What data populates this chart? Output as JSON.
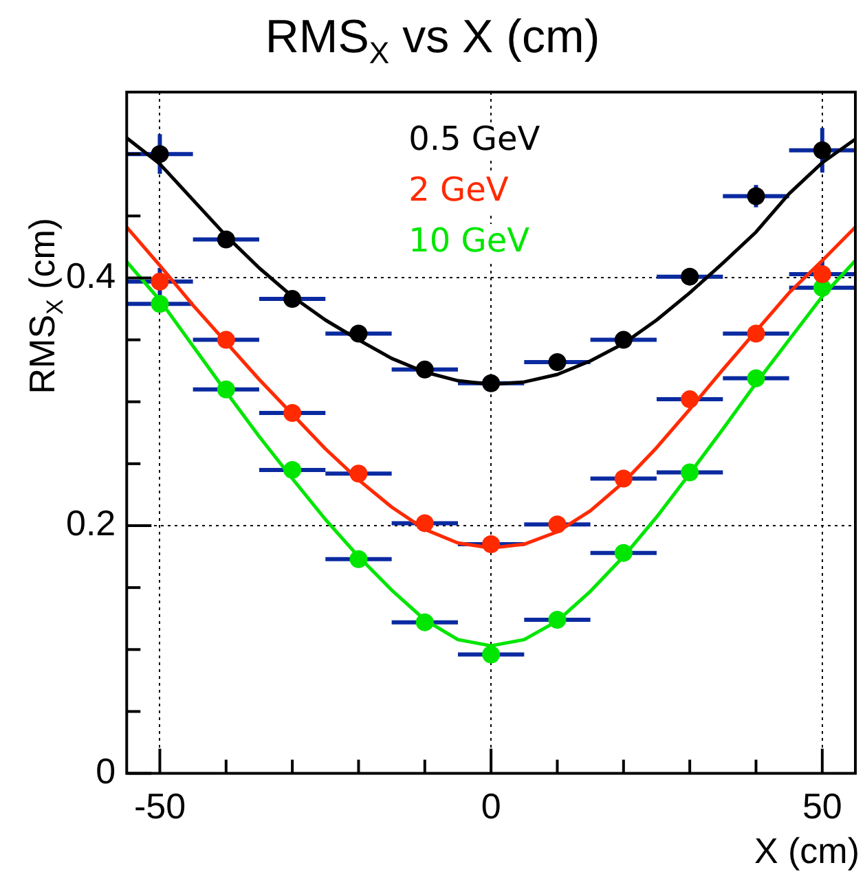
{
  "chart_data": {
    "type": "scatter",
    "title": "RMS$_{X}$ vs X (cm)",
    "xlabel": "X (cm)",
    "ylabel": "RMS$_{X}$ (cm)",
    "x": [
      -50,
      -40,
      -30,
      -20,
      -10,
      0,
      10,
      20,
      30,
      40,
      50
    ],
    "xlim": [
      -55,
      55
    ],
    "ylim": [
      0,
      0.55
    ],
    "xticks": [
      -50,
      {
        "value": -40,
        "label": null
      },
      {
        "value": -30,
        "label": null
      },
      {
        "value": -20,
        "label": null
      },
      {
        "value": -10,
        "label": null
      },
      0,
      {
        "value": 10,
        "label": null
      },
      {
        "value": 20,
        "label": null
      },
      {
        "value": 30,
        "label": null
      },
      {
        "value": 40,
        "label": null
      },
      50
    ],
    "yticks": [
      0,
      {
        "value": 0.05,
        "label": null
      },
      {
        "value": 0.1,
        "label": null
      },
      {
        "value": 0.15,
        "label": null
      },
      0.2,
      {
        "value": 0.25,
        "label": null
      },
      {
        "value": 0.3,
        "label": null
      },
      {
        "value": 0.35,
        "label": null
      },
      0.4,
      {
        "value": 0.45,
        "label": null
      },
      {
        "value": 0.5,
        "label": null
      }
    ],
    "grid": true,
    "legend": "top",
    "marker": "circle",
    "series": [
      {
        "name": "0.5 GeV",
        "color": "#000000",
        "values": [
          0.5,
          0.431,
          0.383,
          0.355,
          0.326,
          0.315,
          0.332,
          0.35,
          0.401,
          0.466,
          0.503
        ],
        "xerrors": [
          5,
          5,
          5,
          5,
          5,
          5,
          5,
          5,
          5,
          5,
          5
        ],
        "errors": [
          0.016,
          null,
          null,
          null,
          null,
          null,
          null,
          null,
          null,
          0.009,
          0.018
        ]
      },
      {
        "name": "2 GeV",
        "color": "#ff2a00",
        "values": [
          0.397,
          0.35,
          0.291,
          0.242,
          0.202,
          0.185,
          0.201,
          0.238,
          0.302,
          0.355,
          0.403
        ],
        "xerrors": [
          5,
          5,
          5,
          5,
          5,
          5,
          5,
          5,
          5,
          5,
          5
        ],
        "errors": [
          0.011,
          null,
          null,
          null,
          null,
          null,
          null,
          null,
          null,
          null,
          0.011
        ]
      },
      {
        "name": "10 GeV",
        "color": "#00e600",
        "values": [
          0.379,
          0.31,
          0.245,
          0.173,
          0.122,
          0.096,
          0.124,
          0.178,
          0.243,
          0.319,
          0.392
        ],
        "xerrors": [
          5,
          5,
          5,
          5,
          5,
          5,
          5,
          5,
          5,
          5,
          5
        ]
      },
      {
        "type": "line",
        "marker": "none",
        "color": "#000000",
        "x": [
          -55,
          -50,
          -45,
          -40,
          -35,
          -30,
          -25,
          -20,
          -15,
          -10,
          -5,
          0,
          5,
          10,
          15,
          20,
          25,
          30,
          35,
          40,
          45,
          50,
          55
        ],
        "values": [
          0.513,
          0.492,
          0.463,
          0.434,
          0.408,
          0.385,
          0.366,
          0.35,
          0.335,
          0.324,
          0.317,
          0.314,
          0.316,
          0.322,
          0.333,
          0.347,
          0.366,
          0.388,
          0.412,
          0.437,
          0.468,
          0.493,
          0.512
        ]
      },
      {
        "type": "line",
        "marker": "none",
        "color": "#ff2a00",
        "x": [
          -55,
          -50,
          -45,
          -40,
          -35,
          -30,
          -25,
          -20,
          -15,
          -10,
          -5,
          0,
          5,
          10,
          15,
          20,
          25,
          30,
          35,
          40,
          45,
          50,
          55
        ],
        "values": [
          0.441,
          0.41,
          0.378,
          0.348,
          0.318,
          0.29,
          0.262,
          0.237,
          0.215,
          0.197,
          0.186,
          0.182,
          0.185,
          0.195,
          0.212,
          0.235,
          0.263,
          0.294,
          0.326,
          0.357,
          0.388,
          0.414,
          0.441
        ]
      },
      {
        "type": "line",
        "marker": "none",
        "color": "#00e600",
        "x": [
          -55,
          -50,
          -45,
          -40,
          -35,
          -30,
          -25,
          -20,
          -15,
          -10,
          -5,
          0,
          5,
          10,
          15,
          20,
          25,
          30,
          35,
          40,
          45,
          50,
          55
        ],
        "values": [
          0.413,
          0.382,
          0.345,
          0.308,
          0.272,
          0.238,
          0.205,
          0.175,
          0.148,
          0.124,
          0.108,
          0.103,
          0.108,
          0.123,
          0.147,
          0.175,
          0.207,
          0.242,
          0.278,
          0.315,
          0.35,
          0.385,
          0.414
        ]
      }
    ]
  }
}
